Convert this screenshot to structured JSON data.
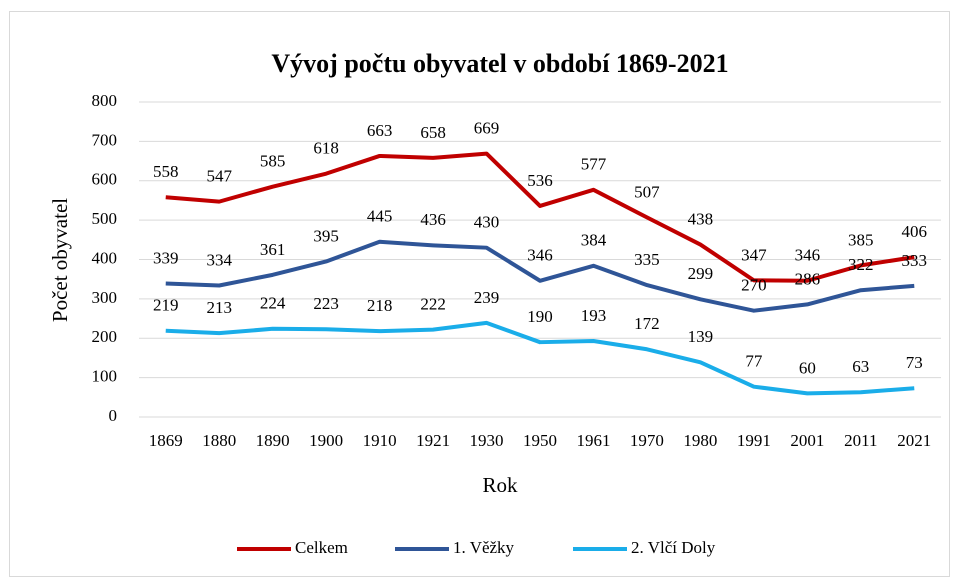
{
  "chart_data": {
    "type": "line",
    "title": "Vývoj počtu obyvatel v období 1869-2021",
    "x_label": "Rok",
    "y_label": "Počet obyvatel",
    "categories": [
      "1869",
      "1880",
      "1890",
      "1900",
      "1910",
      "1921",
      "1930",
      "1950",
      "1961",
      "1970",
      "1980",
      "1991",
      "2001",
      "2011",
      "2021"
    ],
    "series": [
      {
        "name": "Celkem",
        "color": "#c00000",
        "values": [
          558,
          547,
          585,
          618,
          663,
          658,
          669,
          536,
          577,
          507,
          438,
          347,
          346,
          385,
          406
        ]
      },
      {
        "name": "1. Věžky",
        "color": "#2f5597",
        "values": [
          339,
          334,
          361,
          395,
          445,
          436,
          430,
          346,
          384,
          335,
          299,
          270,
          286,
          322,
          333
        ]
      },
      {
        "name": "2. Vlčí Doly",
        "color": "#1aade9",
        "values": [
          219,
          213,
          224,
          223,
          218,
          222,
          239,
          190,
          193,
          172,
          139,
          77,
          60,
          63,
          73
        ]
      }
    ],
    "ylim": [
      0,
      800
    ],
    "yticks": [
      0,
      100,
      200,
      300,
      400,
      500,
      600,
      700,
      800
    ],
    "grid": true,
    "legend": "bottom"
  }
}
